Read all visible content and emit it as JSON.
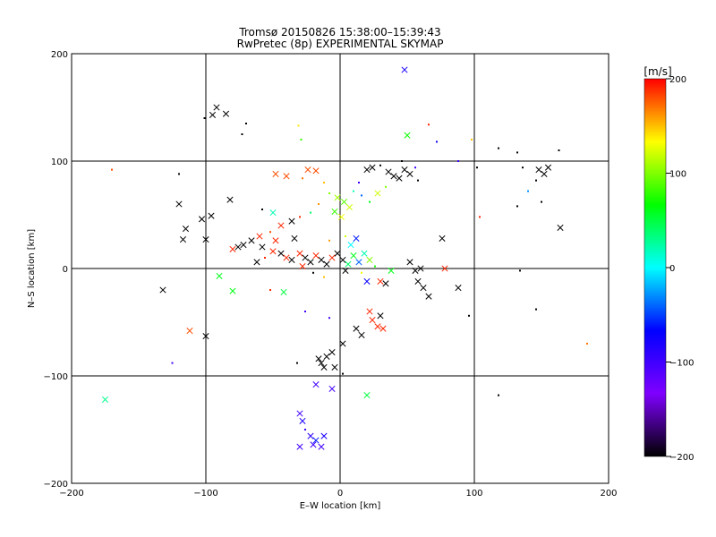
{
  "chart_data": {
    "type": "scatter",
    "title": "Tromsø 20150826 15:38:00–15:39:43",
    "subtitle": "RwPretec (8p) EXPERIMENTAL SKYMAP",
    "xlabel": "E–W location [km]",
    "ylabel": "N–S location [km]",
    "xlim": [
      -200,
      200
    ],
    "ylim": [
      -200,
      200
    ],
    "xticks": [
      "−200",
      "−100",
      "0",
      "100",
      "200"
    ],
    "yticks": [
      "−200",
      "−100",
      "0",
      "100",
      "200"
    ],
    "grid_lines": [
      -100,
      0,
      100
    ],
    "colorbar": {
      "label": "[m/s]",
      "range": [
        -200,
        200
      ],
      "ticks": [
        "200",
        "100",
        "0",
        "−100",
        "−200"
      ],
      "colors": [
        "#000000",
        "#7f00ff",
        "#0000ff",
        "#00ffff",
        "#00ff00",
        "#ffff00",
        "#ff0000"
      ]
    },
    "markers": {
      "x": "strong echo (cross)",
      "dot": "weak echo (point)"
    },
    "points": [
      {
        "x": -92,
        "y": 150,
        "v": -200,
        "m": "x"
      },
      {
        "x": -85,
        "y": 144,
        "v": -200,
        "m": "x"
      },
      {
        "x": -95,
        "y": 143,
        "v": -200,
        "m": "x"
      },
      {
        "x": -101,
        "y": 140,
        "v": -200,
        "m": "d"
      },
      {
        "x": -73,
        "y": 125,
        "v": -200,
        "m": "d"
      },
      {
        "x": -70,
        "y": 135,
        "v": -200,
        "m": "d"
      },
      {
        "x": -31,
        "y": 133,
        "v": 140,
        "m": "d"
      },
      {
        "x": -29,
        "y": 120,
        "v": 80,
        "m": "d"
      },
      {
        "x": 48,
        "y": 185,
        "v": -80,
        "m": "x"
      },
      {
        "x": 50,
        "y": 124,
        "v": 70,
        "m": "x"
      },
      {
        "x": 66,
        "y": 134,
        "v": 190,
        "m": "d"
      },
      {
        "x": 72,
        "y": 118,
        "v": -70,
        "m": "d"
      },
      {
        "x": 98,
        "y": 120,
        "v": 150,
        "m": "d"
      },
      {
        "x": 118,
        "y": 112,
        "v": -200,
        "m": "d"
      },
      {
        "x": 132,
        "y": 108,
        "v": -200,
        "m": "d"
      },
      {
        "x": 163,
        "y": 110,
        "v": -200,
        "m": "d"
      },
      {
        "x": -170,
        "y": 92,
        "v": 180,
        "m": "d"
      },
      {
        "x": -120,
        "y": 88,
        "v": -200,
        "m": "d"
      },
      {
        "x": -120,
        "y": 60,
        "v": -200,
        "m": "x"
      },
      {
        "x": -96,
        "y": 49,
        "v": -200,
        "m": "x"
      },
      {
        "x": -103,
        "y": 46,
        "v": -200,
        "m": "x"
      },
      {
        "x": -115,
        "y": 37,
        "v": -200,
        "m": "x"
      },
      {
        "x": -117,
        "y": 27,
        "v": -200,
        "m": "x"
      },
      {
        "x": -100,
        "y": 27,
        "v": -200,
        "m": "x"
      },
      {
        "x": -132,
        "y": -20,
        "v": -200,
        "m": "x"
      },
      {
        "x": -112,
        "y": -58,
        "v": 180,
        "m": "x"
      },
      {
        "x": -100,
        "y": -63,
        "v": -200,
        "m": "x"
      },
      {
        "x": -175,
        "y": -122,
        "v": 30,
        "m": "x"
      },
      {
        "x": -125,
        "y": -88,
        "v": -100,
        "m": "d"
      },
      {
        "x": -90,
        "y": -7,
        "v": 60,
        "m": "x"
      },
      {
        "x": -80,
        "y": -21,
        "v": 60,
        "m": "x"
      },
      {
        "x": -82,
        "y": 64,
        "v": -200,
        "m": "x"
      },
      {
        "x": -58,
        "y": 55,
        "v": -200,
        "m": "d"
      },
      {
        "x": -50,
        "y": 52,
        "v": 20,
        "m": "x"
      },
      {
        "x": -48,
        "y": 88,
        "v": 180,
        "m": "x"
      },
      {
        "x": -40,
        "y": 86,
        "v": 180,
        "m": "x"
      },
      {
        "x": -24,
        "y": 92,
        "v": 180,
        "m": "x"
      },
      {
        "x": -18,
        "y": 91,
        "v": 180,
        "m": "x"
      },
      {
        "x": -28,
        "y": 84,
        "v": 170,
        "m": "d"
      },
      {
        "x": -12,
        "y": 80,
        "v": 150,
        "m": "d"
      },
      {
        "x": -8,
        "y": 70,
        "v": 100,
        "m": "d"
      },
      {
        "x": -2,
        "y": 66,
        "v": 110,
        "m": "x"
      },
      {
        "x": 3,
        "y": 62,
        "v": 90,
        "m": "x"
      },
      {
        "x": 7,
        "y": 57,
        "v": 120,
        "m": "x"
      },
      {
        "x": -4,
        "y": 53,
        "v": 80,
        "m": "x"
      },
      {
        "x": 1,
        "y": 48,
        "v": 130,
        "m": "x"
      },
      {
        "x": 10,
        "y": 72,
        "v": 20,
        "m": "d"
      },
      {
        "x": 16,
        "y": 68,
        "v": -40,
        "m": "d"
      },
      {
        "x": 22,
        "y": 62,
        "v": 60,
        "m": "d"
      },
      {
        "x": 28,
        "y": 70,
        "v": 120,
        "m": "x"
      },
      {
        "x": 34,
        "y": 76,
        "v": 100,
        "m": "d"
      },
      {
        "x": 14,
        "y": 80,
        "v": -100,
        "m": "d"
      },
      {
        "x": -16,
        "y": 60,
        "v": 160,
        "m": "d"
      },
      {
        "x": -22,
        "y": 52,
        "v": 40,
        "m": "d"
      },
      {
        "x": -30,
        "y": 48,
        "v": 190,
        "m": "d"
      },
      {
        "x": -36,
        "y": 44,
        "v": -200,
        "m": "x"
      },
      {
        "x": -44,
        "y": 40,
        "v": 190,
        "m": "x"
      },
      {
        "x": -52,
        "y": 34,
        "v": 180,
        "m": "d"
      },
      {
        "x": -60,
        "y": 30,
        "v": 190,
        "m": "x"
      },
      {
        "x": -66,
        "y": 26,
        "v": -200,
        "m": "x"
      },
      {
        "x": -72,
        "y": 22,
        "v": -200,
        "m": "x"
      },
      {
        "x": -76,
        "y": 20,
        "v": -200,
        "m": "x"
      },
      {
        "x": -80,
        "y": 18,
        "v": 190,
        "m": "x"
      },
      {
        "x": -58,
        "y": 20,
        "v": -200,
        "m": "x"
      },
      {
        "x": -50,
        "y": 16,
        "v": 190,
        "m": "x"
      },
      {
        "x": -44,
        "y": 14,
        "v": -200,
        "m": "x"
      },
      {
        "x": -40,
        "y": 10,
        "v": 190,
        "m": "x"
      },
      {
        "x": -36,
        "y": 8,
        "v": -200,
        "m": "x"
      },
      {
        "x": -30,
        "y": 14,
        "v": 190,
        "m": "x"
      },
      {
        "x": -26,
        "y": 10,
        "v": -200,
        "m": "x"
      },
      {
        "x": -22,
        "y": 6,
        "v": -200,
        "m": "x"
      },
      {
        "x": -18,
        "y": 12,
        "v": 190,
        "m": "x"
      },
      {
        "x": -14,
        "y": 8,
        "v": -200,
        "m": "x"
      },
      {
        "x": -10,
        "y": 4,
        "v": -200,
        "m": "x"
      },
      {
        "x": -6,
        "y": 10,
        "v": 190,
        "m": "x"
      },
      {
        "x": -2,
        "y": 14,
        "v": -200,
        "m": "x"
      },
      {
        "x": 2,
        "y": 8,
        "v": -200,
        "m": "x"
      },
      {
        "x": 6,
        "y": 4,
        "v": 40,
        "m": "x"
      },
      {
        "x": 10,
        "y": 12,
        "v": 60,
        "m": "x"
      },
      {
        "x": 14,
        "y": 6,
        "v": -40,
        "m": "x"
      },
      {
        "x": 18,
        "y": 14,
        "v": 20,
        "m": "x"
      },
      {
        "x": 22,
        "y": 8,
        "v": 100,
        "m": "x"
      },
      {
        "x": 26,
        "y": 2,
        "v": 70,
        "m": "d"
      },
      {
        "x": 8,
        "y": 22,
        "v": 0,
        "m": "x"
      },
      {
        "x": 12,
        "y": 28,
        "v": -60,
        "m": "x"
      },
      {
        "x": 4,
        "y": 30,
        "v": 120,
        "m": "d"
      },
      {
        "x": -8,
        "y": 26,
        "v": 160,
        "m": "d"
      },
      {
        "x": -34,
        "y": 28,
        "v": -200,
        "m": "x"
      },
      {
        "x": -48,
        "y": 26,
        "v": 190,
        "m": "x"
      },
      {
        "x": -56,
        "y": 10,
        "v": 190,
        "m": "d"
      },
      {
        "x": -62,
        "y": 6,
        "v": -200,
        "m": "x"
      },
      {
        "x": -28,
        "y": 2,
        "v": 190,
        "m": "x"
      },
      {
        "x": -20,
        "y": -4,
        "v": -200,
        "m": "d"
      },
      {
        "x": -12,
        "y": -8,
        "v": 150,
        "m": "d"
      },
      {
        "x": 4,
        "y": -2,
        "v": -200,
        "m": "x"
      },
      {
        "x": 16,
        "y": -4,
        "v": 130,
        "m": "d"
      },
      {
        "x": 20,
        "y": -12,
        "v": -70,
        "m": "x"
      },
      {
        "x": 30,
        "y": -12,
        "v": 190,
        "m": "x"
      },
      {
        "x": 34,
        "y": -14,
        "v": -200,
        "m": "x"
      },
      {
        "x": 38,
        "y": -2,
        "v": 60,
        "m": "x"
      },
      {
        "x": 52,
        "y": 6,
        "v": -200,
        "m": "x"
      },
      {
        "x": 56,
        "y": -2,
        "v": -200,
        "m": "x"
      },
      {
        "x": 60,
        "y": 0,
        "v": -200,
        "m": "x"
      },
      {
        "x": 58,
        "y": -12,
        "v": -200,
        "m": "x"
      },
      {
        "x": 62,
        "y": -18,
        "v": -200,
        "m": "x"
      },
      {
        "x": 66,
        "y": -26,
        "v": -200,
        "m": "x"
      },
      {
        "x": 78,
        "y": 0,
        "v": 190,
        "m": "x"
      },
      {
        "x": 88,
        "y": -18,
        "v": -200,
        "m": "x"
      },
      {
        "x": 76,
        "y": 28,
        "v": -200,
        "m": "x"
      },
      {
        "x": 96,
        "y": -44,
        "v": -200,
        "m": "d"
      },
      {
        "x": 44,
        "y": 84,
        "v": -200,
        "m": "x"
      },
      {
        "x": 48,
        "y": 92,
        "v": -200,
        "m": "x"
      },
      {
        "x": 36,
        "y": 90,
        "v": -200,
        "m": "x"
      },
      {
        "x": 40,
        "y": 86,
        "v": -200,
        "m": "x"
      },
      {
        "x": 52,
        "y": 88,
        "v": -200,
        "m": "x"
      },
      {
        "x": 30,
        "y": 96,
        "v": -200,
        "m": "d"
      },
      {
        "x": 24,
        "y": 94,
        "v": -200,
        "m": "x"
      },
      {
        "x": 20,
        "y": 92,
        "v": -200,
        "m": "x"
      },
      {
        "x": 46,
        "y": 100,
        "v": -200,
        "m": "d"
      },
      {
        "x": 56,
        "y": 94,
        "v": -100,
        "m": "d"
      },
      {
        "x": 58,
        "y": 82,
        "v": -200,
        "m": "d"
      },
      {
        "x": 88,
        "y": 100,
        "v": -100,
        "m": "d"
      },
      {
        "x": 102,
        "y": 94,
        "v": -200,
        "m": "d"
      },
      {
        "x": 136,
        "y": 94,
        "v": -200,
        "m": "d"
      },
      {
        "x": 148,
        "y": 92,
        "v": -200,
        "m": "x"
      },
      {
        "x": 152,
        "y": 88,
        "v": -200,
        "m": "x"
      },
      {
        "x": 155,
        "y": 94,
        "v": -200,
        "m": "x"
      },
      {
        "x": 146,
        "y": 82,
        "v": -200,
        "m": "d"
      },
      {
        "x": 140,
        "y": 72,
        "v": -30,
        "m": "d"
      },
      {
        "x": 132,
        "y": 58,
        "v": -200,
        "m": "d"
      },
      {
        "x": 150,
        "y": 62,
        "v": -200,
        "m": "d"
      },
      {
        "x": 164,
        "y": 38,
        "v": -200,
        "m": "x"
      },
      {
        "x": 104,
        "y": 48,
        "v": 190,
        "m": "d"
      },
      {
        "x": 134,
        "y": -2,
        "v": -200,
        "m": "d"
      },
      {
        "x": 146,
        "y": -38,
        "v": -200,
        "m": "d"
      },
      {
        "x": 184,
        "y": -70,
        "v": 170,
        "m": "d"
      },
      {
        "x": -42,
        "y": -22,
        "v": 50,
        "m": "x"
      },
      {
        "x": -52,
        "y": -20,
        "v": 190,
        "m": "d"
      },
      {
        "x": -26,
        "y": -40,
        "v": -100,
        "m": "d"
      },
      {
        "x": -8,
        "y": -46,
        "v": -100,
        "m": "d"
      },
      {
        "x": 12,
        "y": -56,
        "v": -200,
        "m": "x"
      },
      {
        "x": 16,
        "y": -62,
        "v": -200,
        "m": "x"
      },
      {
        "x": 22,
        "y": -40,
        "v": 190,
        "m": "x"
      },
      {
        "x": 24,
        "y": -48,
        "v": 190,
        "m": "x"
      },
      {
        "x": 28,
        "y": -54,
        "v": 190,
        "m": "x"
      },
      {
        "x": 32,
        "y": -56,
        "v": 190,
        "m": "x"
      },
      {
        "x": 30,
        "y": -44,
        "v": -200,
        "m": "x"
      },
      {
        "x": 2,
        "y": -70,
        "v": -200,
        "m": "x"
      },
      {
        "x": -6,
        "y": -78,
        "v": -200,
        "m": "x"
      },
      {
        "x": -10,
        "y": -82,
        "v": -200,
        "m": "x"
      },
      {
        "x": -14,
        "y": -88,
        "v": -200,
        "m": "x"
      },
      {
        "x": -12,
        "y": -92,
        "v": -200,
        "m": "x"
      },
      {
        "x": -16,
        "y": -84,
        "v": -200,
        "m": "x"
      },
      {
        "x": -4,
        "y": -92,
        "v": -200,
        "m": "x"
      },
      {
        "x": -32,
        "y": -88,
        "v": -200,
        "m": "d"
      },
      {
        "x": 2,
        "y": -98,
        "v": -200,
        "m": "d"
      },
      {
        "x": -18,
        "y": -108,
        "v": -100,
        "m": "x"
      },
      {
        "x": -6,
        "y": -112,
        "v": -100,
        "m": "x"
      },
      {
        "x": 20,
        "y": -118,
        "v": 50,
        "m": "x"
      },
      {
        "x": -30,
        "y": -135,
        "v": -100,
        "m": "x"
      },
      {
        "x": -28,
        "y": -142,
        "v": -80,
        "m": "x"
      },
      {
        "x": -22,
        "y": -156,
        "v": -90,
        "m": "x"
      },
      {
        "x": -18,
        "y": -160,
        "v": -60,
        "m": "x"
      },
      {
        "x": -12,
        "y": -156,
        "v": -80,
        "m": "x"
      },
      {
        "x": -20,
        "y": -164,
        "v": -100,
        "m": "x"
      },
      {
        "x": -30,
        "y": -166,
        "v": -100,
        "m": "x"
      },
      {
        "x": -14,
        "y": -166,
        "v": -100,
        "m": "x"
      },
      {
        "x": -26,
        "y": -150,
        "v": -100,
        "m": "d"
      },
      {
        "x": 118,
        "y": -118,
        "v": -200,
        "m": "d"
      }
    ]
  }
}
